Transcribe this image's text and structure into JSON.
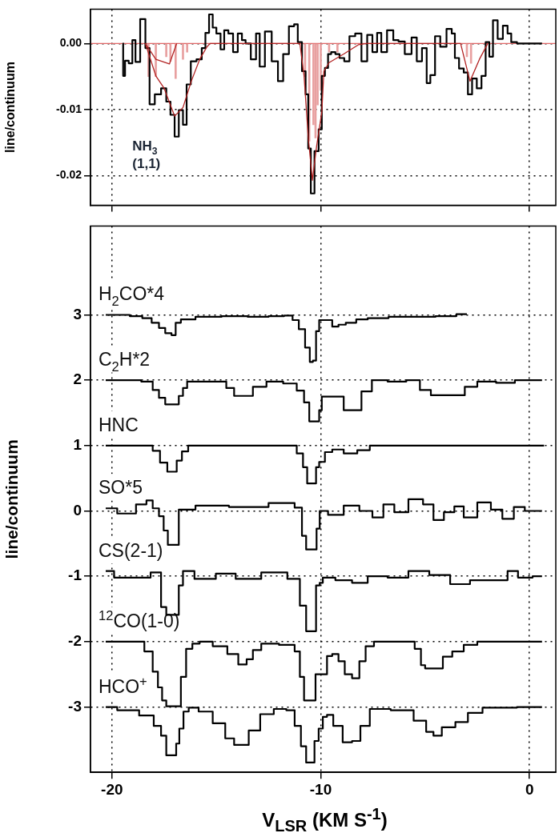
{
  "chart_data": [
    {
      "type": "step",
      "ylabel": "line/continuum",
      "annotations": [
        "NH$_{3}$ (1,1)"
      ],
      "xlim": [
        -21.03,
        1.26
      ],
      "ylim": [
        -0.0245,
        0.0052
      ],
      "xticks": [
        -20,
        -10,
        0
      ],
      "yticks": [
        {
          "value": 0,
          "label": "0.00"
        },
        {
          "value": -0.01,
          "label": "-0.01"
        },
        {
          "value": -0.02,
          "label": "-0.02"
        }
      ],
      "tick_labels": "y",
      "grid": true,
      "marker": "none",
      "ref_lines": [
        {
          "axis": "y",
          "value": 0,
          "color": "#e06666"
        }
      ],
      "series": [
        {
          "type": "bar",
          "color": "#e8a0a0",
          "x": [
            -18.25,
            -17.9,
            -17.4,
            -17.2,
            -16.95,
            -16.6,
            -16.4,
            -10.75,
            -10.55,
            -10.35,
            -10.25,
            -10.15,
            -10.0,
            -9.6,
            -9.2,
            -3.0,
            -2.8
          ],
          "values": [
            -0.005,
            -0.005,
            -0.002,
            -0.0027,
            -0.0053,
            -0.0024,
            -0.0013,
            -0.005,
            -0.0148,
            -0.0123,
            -0.0143,
            -0.0093,
            -0.0071,
            -0.0013,
            -0.0013,
            -0.002,
            -0.003
          ]
        },
        {
          "type": "step",
          "color": "#000000",
          "x": [
            -19.48,
            -19.45,
            -19.3,
            -19.1,
            -18.95,
            -18.8,
            -18.5,
            -18.3,
            -18.1,
            -17.8,
            -17.5,
            -17.3,
            -17.1,
            -16.9,
            -16.7,
            -16.5,
            -16.35,
            -16.1,
            -15.8,
            -15.6,
            -15.45,
            -15.25,
            -15.1,
            -14.9,
            -14.7,
            -14.55,
            -14.3,
            -14.1,
            -13.85,
            -13.7,
            -13.5,
            -13.2,
            -13.0,
            -12.85,
            -12.5,
            -12.2,
            -11.9,
            -11.7,
            -11.35,
            -11.2,
            -11.0,
            -10.8,
            -10.65,
            -10.55,
            -10.4,
            -10.2,
            -10.0,
            -9.9,
            -9.7,
            -9.6,
            -9.4,
            -9.2,
            -9.0,
            -8.75,
            -8.5,
            -8.2,
            -7.9,
            -7.65,
            -7.4,
            -7.2,
            -7.0,
            -6.65,
            -6.4,
            -6.15,
            -5.8,
            -5.5,
            -5.3,
            -5.0,
            -4.85,
            -4.65,
            -4.4,
            -4.15,
            -3.8,
            -3.65,
            -3.5,
            -3.25,
            -3.05,
            -2.85,
            -2.65,
            -2.4,
            -2.2,
            -2.0,
            -1.85,
            -1.65,
            -1.4,
            -1.15,
            -0.95,
            -0.8,
            -0.4,
            0.0,
            0.6
          ],
          "values": [
            0,
            -0.0049,
            -0.0026,
            -0.003,
            0.0005,
            -0.0028,
            0.0037,
            -0.0007,
            -0.0092,
            -0.0077,
            -0.0068,
            -0.0088,
            -0.0108,
            -0.0141,
            -0.0101,
            -0.0123,
            -0.0062,
            -0.0027,
            -0.0024,
            -0.0007,
            0.0016,
            0.0044,
            0.0024,
            0.0015,
            -0.0009,
            0.002,
            0.0015,
            -0.0013,
            0.0015,
            0.0005,
            0,
            -0.0024,
            0.0015,
            -0.0035,
            0.0018,
            -0.0027,
            -0.0057,
            -0.0016,
            0.0026,
            0.0029,
            0.0002,
            -0.0042,
            -0.0077,
            -0.0159,
            -0.0227,
            -0.0163,
            -0.013,
            -0.0049,
            -0.0037,
            -0.0016,
            -0.0013,
            -0.0016,
            -0.0022,
            -0.0027,
            0.0011,
            0.0015,
            -0.0027,
            0.0013,
            -0.0013,
            0.0016,
            -0.0013,
            0.002,
            0.0005,
            0.0003,
            -0.0016,
            0.0009,
            -0.0027,
            -0.0007,
            -0.006,
            -0.0048,
            0.0011,
            -0.0005,
            0.0022,
            0.0015,
            -0.0022,
            -0.0038,
            -0.0044,
            -0.0077,
            -0.0053,
            -0.0068,
            -0.0049,
            0.0002,
            -0.002,
            0.0035,
            0.0007,
            0.0027,
            0.0015,
            0.0002,
            0,
            0,
            0
          ]
        },
        {
          "type": "line",
          "color": "#b22222",
          "x": [
            -18.4,
            -17.9,
            -17.25,
            -16.9
          ],
          "values": [
            0,
            -0.0024,
            -0.0031,
            0
          ]
        },
        {
          "type": "line",
          "color": "#b22222",
          "x": [
            -18.4,
            -17.9,
            -17.5,
            -17.0,
            -16.6,
            -16.2,
            -15.8,
            -15.45,
            -15.3,
            -11.0,
            -10.8,
            -10.6,
            -10.4,
            -10.2,
            -9.95,
            -9.85,
            -9.6,
            -8.9,
            -8.2,
            -7.8,
            -3.3,
            -2.85,
            -2.4,
            -2.0
          ],
          "values": [
            0,
            -0.0049,
            -0.0068,
            -0.011,
            -0.0097,
            -0.0057,
            -0.0024,
            -0.0005,
            0,
            0,
            -0.0049,
            -0.0141,
            -0.0207,
            -0.0156,
            -0.0104,
            -0.0042,
            -0.0029,
            -0.0016,
            -0.0002,
            0,
            0,
            -0.0057,
            -0.0024,
            0
          ]
        }
      ]
    },
    {
      "type": "step",
      "xlabel": "V$_{LSR}$ (KM S$^{-1}$)",
      "ylabel": "line/continuum",
      "xlim": [
        -21.03,
        1.26
      ],
      "ylim": [
        -4,
        4.36
      ],
      "xticks": [
        -20,
        -10,
        0
      ],
      "yticks": [
        -3,
        -2,
        -1,
        0,
        1,
        2,
        3
      ],
      "grid": true,
      "marker": "none",
      "series": [
        {
          "name": "H$_{2}$CO*4",
          "color": "#000000",
          "x": [
            -20.3,
            -19.5,
            -18.8,
            -18.3,
            -17.9,
            -17.6,
            -17.3,
            -17.0,
            -16.9,
            -16.5,
            -15.5,
            -14,
            -13,
            -12,
            -11.5,
            -11.2,
            -10.9,
            -10.6,
            -10.45,
            -10.3,
            -10.15,
            -10.0,
            -9.6,
            -9.3,
            -9.0,
            -8.6,
            -8.0,
            -7.5,
            -6,
            -5,
            -4,
            -3.0
          ],
          "values": [
            3.0,
            3.0,
            2.98,
            2.95,
            2.88,
            2.8,
            2.72,
            2.69,
            2.88,
            2.93,
            2.97,
            2.98,
            2.97,
            2.98,
            2.99,
            2.92,
            2.78,
            2.5,
            2.28,
            2.3,
            2.75,
            2.92,
            2.92,
            2.82,
            2.85,
            2.88,
            2.93,
            2.95,
            2.97,
            2.97,
            2.98,
            3.01
          ]
        },
        {
          "name": "C$_{2}$H*2",
          "color": "#000000",
          "x": [
            -20.3,
            -19,
            -18.2,
            -17.9,
            -17.6,
            -17.3,
            -16.9,
            -16.7,
            -16.5,
            -16.3,
            -14.75,
            -14.3,
            -14.0,
            -13.5,
            -13.0,
            -12.2,
            -11.4,
            -10.9,
            -10.7,
            -10.4,
            -10.15,
            -10.0,
            -9.9,
            -9.1,
            -8.7,
            -8.3,
            -7.8,
            -7.3,
            -6.3,
            -5.5,
            -5.0,
            -4.45,
            -3.3,
            -2.9,
            -2.1,
            -1.1,
            -0.3,
            0.6
          ],
          "values": [
            2.0,
            2.0,
            1.98,
            1.85,
            1.73,
            1.63,
            1.63,
            1.76,
            1.88,
            1.98,
            1.98,
            1.88,
            1.76,
            1.76,
            1.9,
            1.98,
            1.95,
            1.84,
            1.66,
            1.37,
            1.37,
            1.54,
            1.75,
            1.75,
            1.54,
            1.54,
            1.83,
            2.0,
            1.98,
            2.0,
            1.85,
            1.77,
            1.77,
            1.9,
            1.98,
            1.96,
            2.0,
            2.0
          ]
        },
        {
          "name": "HNC",
          "color": "#000000",
          "x": [
            -20.3,
            -18.2,
            -17.9,
            -17.5,
            -17.2,
            -17.0,
            -16.8,
            -16.5,
            -16.2,
            -11.3,
            -11.0,
            -10.7,
            -10.6,
            -10.3,
            -10.15,
            -10.0,
            -9.6,
            -9.3,
            -8.5,
            -8.0,
            -7.3,
            -3,
            0.7
          ],
          "values": [
            1.0,
            1.0,
            0.92,
            0.74,
            0.6,
            0.6,
            0.77,
            0.91,
            1.0,
            1.0,
            0.88,
            0.67,
            0.42,
            0.42,
            0.67,
            0.75,
            0.9,
            0.94,
            0.88,
            0.93,
            1.0,
            1.0,
            1.0
          ]
        },
        {
          "name": "SO*5",
          "color": "#000000",
          "x": [
            -20.3,
            -19.2,
            -18.5,
            -18.2,
            -17.9,
            -17.6,
            -17.45,
            -17.2,
            -16.9,
            -16.7,
            -15.3,
            -13.5,
            -11.5,
            -11.0,
            -10.8,
            -10.6,
            -10.3,
            -10.1,
            -10.0,
            -9.3,
            -8.5,
            -7.8,
            -7.25,
            -6.75,
            -6.2,
            -5.4,
            -4.8,
            -4.4,
            -3.8,
            -3.4,
            -2.9,
            -2.1,
            -1.6,
            -1.0,
            -0.5,
            0.05,
            0.6
          ],
          "values": [
            0.04,
            -0.04,
            0.1,
            0.16,
            0.04,
            -0.08,
            -0.3,
            -0.52,
            -0.52,
            0.02,
            0.08,
            0.06,
            0.12,
            0.05,
            -0.38,
            -0.59,
            -0.59,
            -0.27,
            0,
            -0.06,
            0.08,
            0,
            -0.1,
            0.1,
            -0.02,
            0.18,
            0.1,
            -0.14,
            -0.02,
            0.07,
            -0.1,
            0.13,
            0.02,
            -0.12,
            0.06,
            0,
            0
          ]
        },
        {
          "name": "CS(2-1)",
          "color": "#000000",
          "x": [
            -20.3,
            -19.5,
            -18.5,
            -17.8,
            -17.5,
            -17.3,
            -16.9,
            -16.7,
            -16.5,
            -15.6,
            -14.45,
            -13.7,
            -12.0,
            -11.2,
            -10.8,
            -10.6,
            -10.35,
            -10.1,
            -10.0,
            -9.8,
            -8.8,
            -8.2,
            -7.3,
            -6.3,
            -5.3,
            -4.3,
            -3.3,
            -2.4,
            -1.3,
            -0.8,
            -0.3,
            0.6
          ],
          "values": [
            -0.92,
            -1.02,
            -1.02,
            -0.94,
            -1.47,
            -1.59,
            -1.59,
            -1.14,
            -0.92,
            -1.04,
            -0.96,
            -1.04,
            -0.94,
            -1.04,
            -1.45,
            -1.84,
            -1.84,
            -1.14,
            -1.1,
            -1.02,
            -1.06,
            -1.1,
            -1.0,
            -1.02,
            -0.92,
            -0.98,
            -1.12,
            -1.06,
            -1.06,
            -0.92,
            -1.02,
            -1.0
          ]
        },
        {
          "name": "$^{12}$CO(1-0)",
          "color": "#000000",
          "x": [
            -20.3,
            -18.7,
            -18.2,
            -17.9,
            -17.7,
            -17.5,
            -17.3,
            -16.8,
            -16.6,
            -16.3,
            -16.0,
            -15.6,
            -14.75,
            -14.2,
            -13.7,
            -13.4,
            -13.1,
            -12.6,
            -11.4,
            -11.1,
            -10.9,
            -10.7,
            -10.3,
            -10.2,
            -9.8,
            -9.6,
            -9.3,
            -9.0,
            -8.7,
            -8.3,
            -8.0,
            -7.7,
            -7.2,
            -5.7,
            -5.3,
            -5.1,
            -4.9,
            -4.3,
            -4.0,
            -3.4,
            -2.9,
            -2.1,
            0.6
          ],
          "values": [
            -2.0,
            -2.0,
            -2.15,
            -2.46,
            -2.7,
            -2.9,
            -2.99,
            -2.99,
            -2.54,
            -2.11,
            -2.03,
            -2.0,
            -2.07,
            -2.19,
            -2.35,
            -2.27,
            -2.13,
            -2.03,
            -2.05,
            -2.15,
            -2.54,
            -2.9,
            -2.9,
            -2.5,
            -2.5,
            -2.22,
            -2.19,
            -2.3,
            -2.5,
            -2.56,
            -2.3,
            -2.07,
            -2.0,
            -2.0,
            -2.11,
            -2.36,
            -2.41,
            -2.41,
            -2.23,
            -2.15,
            -2.05,
            -2.0,
            -2.0
          ]
        },
        {
          "name": "HCO$^{+}$",
          "color": "#000000",
          "x": [
            -20.3,
            -19.2,
            -18.2,
            -17.8,
            -17.5,
            -17.3,
            -17.0,
            -16.85,
            -16.7,
            -16.45,
            -16.2,
            -15.5,
            -14.85,
            -14.3,
            -14.0,
            -13.7,
            -13.2,
            -12.6,
            -11.9,
            -11.4,
            -11.1,
            -10.8,
            -10.6,
            -10.4,
            -10.2,
            -10.0,
            -9.8,
            -9.6,
            -9.2,
            -8.7,
            -8.3,
            -7.9,
            -7.4,
            -5.9,
            -5.2,
            -4.7,
            -4.5,
            -3.9,
            -3.2,
            -2.7,
            -1.8,
            0.6
          ],
          "values": [
            -3.0,
            -3.05,
            -3.13,
            -3.29,
            -3.44,
            -3.74,
            -3.74,
            -3.56,
            -3.33,
            -3.07,
            -3.01,
            -3.07,
            -3.25,
            -3.48,
            -3.58,
            -3.58,
            -3.36,
            -3.11,
            -3.03,
            -3.05,
            -3.29,
            -3.6,
            -3.85,
            -3.85,
            -3.52,
            -3.33,
            -3.15,
            -3.12,
            -3.29,
            -3.54,
            -3.52,
            -3.29,
            -3.03,
            -3.05,
            -3.21,
            -3.38,
            -3.44,
            -3.31,
            -3.23,
            -3.09,
            -3.01,
            -3.0
          ]
        }
      ]
    }
  ]
}
